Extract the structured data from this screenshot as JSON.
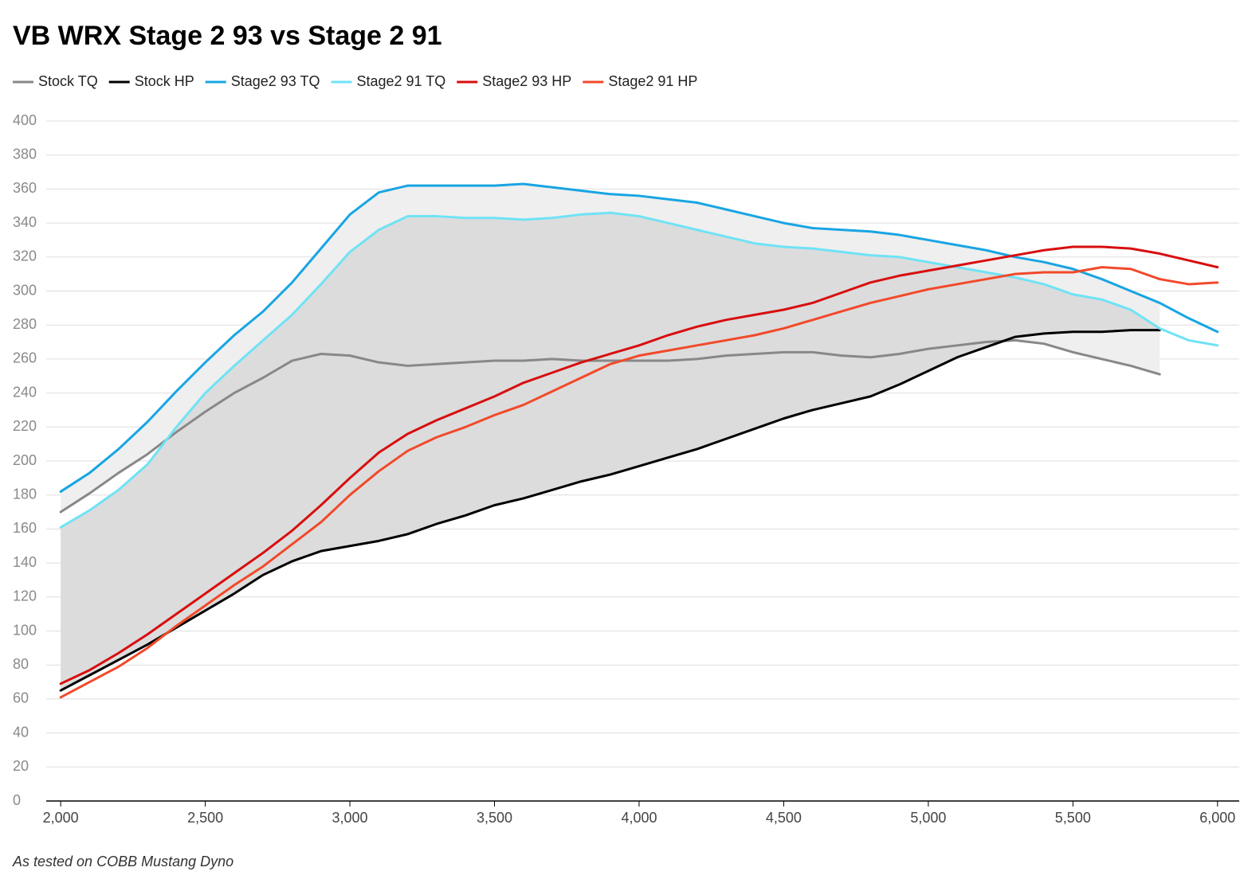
{
  "chart_data": {
    "type": "line",
    "title": "VB WRX Stage 2 93 vs Stage 2 91",
    "note": "As tested on COBB Mustang Dyno",
    "x": [
      2000,
      2100,
      2200,
      2300,
      2400,
      2500,
      2600,
      2700,
      2800,
      2900,
      3000,
      3100,
      3200,
      3300,
      3400,
      3500,
      3600,
      3700,
      3800,
      3900,
      4000,
      4100,
      4200,
      4300,
      4400,
      4500,
      4600,
      4700,
      4800,
      4900,
      5000,
      5100,
      5200,
      5300,
      5400,
      5500,
      5600,
      5700,
      5800,
      5900,
      6000
    ],
    "series": [
      {
        "name": "Stock TQ",
        "color": "#888888",
        "values": [
          170,
          181,
          193,
          204,
          217,
          229,
          240,
          249,
          259,
          263,
          262,
          258,
          256,
          257,
          258,
          259,
          259,
          260,
          259,
          259,
          259,
          259,
          260,
          262,
          263,
          264,
          264,
          262,
          261,
          263,
          266,
          268,
          270,
          271,
          269,
          264,
          260,
          256,
          251,
          null,
          null
        ]
      },
      {
        "name": "Stock HP",
        "color": "#000000",
        "values": [
          65,
          74,
          83,
          92,
          102,
          112,
          122,
          133,
          141,
          147,
          150,
          153,
          157,
          163,
          168,
          174,
          178,
          183,
          188,
          192,
          197,
          202,
          207,
          213,
          219,
          225,
          230,
          234,
          238,
          245,
          253,
          261,
          267,
          273,
          275,
          276,
          276,
          277,
          277,
          null,
          null
        ]
      },
      {
        "name": "Stage2 93 TQ",
        "color": "#18a5e3",
        "values": [
          182,
          193,
          207,
          223,
          241,
          258,
          274,
          288,
          305,
          325,
          345,
          358,
          362,
          362,
          362,
          362,
          363,
          361,
          359,
          357,
          356,
          354,
          352,
          348,
          344,
          340,
          337,
          336,
          335,
          333,
          330,
          327,
          324,
          320,
          317,
          313,
          307,
          300,
          293,
          284,
          276
        ]
      },
      {
        "name": "Stage2 91 TQ",
        "color": "#6fe3f5",
        "values": [
          161,
          171,
          183,
          198,
          220,
          240,
          256,
          271,
          286,
          304,
          323,
          336,
          344,
          344,
          343,
          343,
          342,
          343,
          345,
          346,
          344,
          340,
          336,
          332,
          328,
          326,
          325,
          323,
          321,
          320,
          317,
          314,
          311,
          308,
          304,
          298,
          295,
          289,
          278,
          271,
          268
        ]
      },
      {
        "name": "Stage2 93 HP",
        "color": "#d80e0e",
        "values": [
          69,
          77,
          87,
          98,
          110,
          122,
          134,
          146,
          159,
          174,
          190,
          205,
          216,
          224,
          231,
          238,
          246,
          252,
          258,
          263,
          268,
          274,
          279,
          283,
          286,
          289,
          293,
          299,
          305,
          309,
          312,
          315,
          318,
          321,
          324,
          326,
          326,
          325,
          322,
          318,
          314
        ]
      },
      {
        "name": "Stage2 91 HP",
        "color": "#f2492a",
        "values": [
          61,
          70,
          79,
          90,
          103,
          115,
          127,
          138,
          151,
          164,
          180,
          194,
          206,
          214,
          220,
          227,
          233,
          241,
          249,
          257,
          262,
          265,
          268,
          271,
          274,
          278,
          283,
          288,
          293,
          297,
          301,
          304,
          307,
          310,
          311,
          311,
          314,
          313,
          307,
          304,
          305
        ]
      }
    ],
    "fills": [
      {
        "series": [
          2,
          0
        ],
        "color": "#efefef"
      },
      {
        "series": [
          3,
          1
        ],
        "color": "#dcdcdc"
      }
    ],
    "xlim": [
      1950,
      6075
    ],
    "xticks": [
      {
        "value": 2000,
        "label": "2,000"
      },
      {
        "value": 2500,
        "label": "2,500"
      },
      {
        "value": 3000,
        "label": "3,000"
      },
      {
        "value": 3500,
        "label": "3,500"
      },
      {
        "value": 4000,
        "label": "4,000"
      },
      {
        "value": 4500,
        "label": "4,500"
      },
      {
        "value": 5000,
        "label": "5,000"
      },
      {
        "value": 5500,
        "label": "5,500"
      },
      {
        "value": 6000,
        "label": "6,000"
      }
    ],
    "ylim": [
      0,
      400
    ],
    "yticks": [
      0,
      20,
      40,
      60,
      80,
      100,
      120,
      140,
      160,
      180,
      200,
      220,
      240,
      260,
      280,
      300,
      320,
      340,
      360,
      380,
      400
    ],
    "grid": true
  }
}
